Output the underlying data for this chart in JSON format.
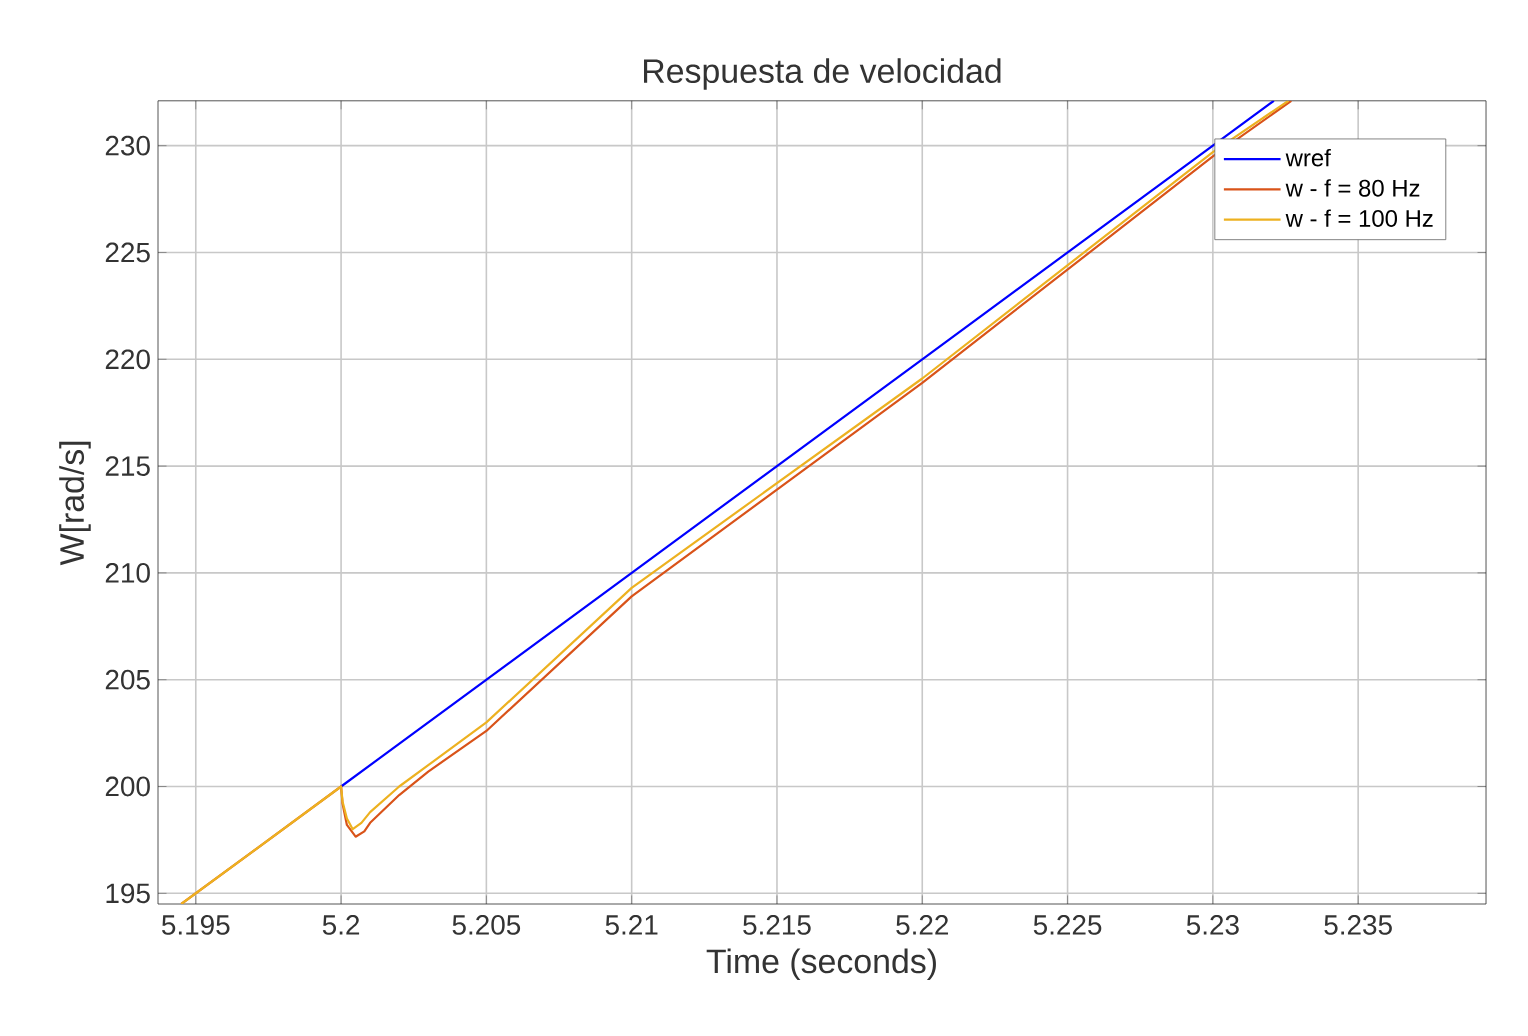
{
  "chart_data": {
    "type": "line",
    "title": "Respuesta de velocidad",
    "xlabel": "Time (seconds)",
    "ylabel": "W[rad/s]",
    "xlim": [
      5.1937,
      5.2394
    ],
    "ylim": [
      194.5,
      232.1
    ],
    "xticks": [
      5.195,
      5.2,
      5.205,
      5.21,
      5.215,
      5.22,
      5.225,
      5.23,
      5.235
    ],
    "yticks": [
      195,
      200,
      205,
      210,
      215,
      220,
      225,
      230
    ],
    "grid": true,
    "legend": "top right",
    "marker": "none",
    "line_style": "solid",
    "series": [
      {
        "name": "wref",
        "color": "#0000ff",
        "x": [
          5.2,
          5.21,
          5.22,
          5.2321
        ],
        "values": [
          200,
          210,
          220,
          232.1
        ]
      },
      {
        "name": "w - f = 80 Hz",
        "color": "#d95319",
        "x": [
          5.1945,
          5.2,
          5.20005,
          5.2002,
          5.2005,
          5.2008,
          5.201,
          5.202,
          5.203,
          5.205,
          5.21,
          5.215,
          5.22,
          5.225,
          5.23,
          5.2327
        ],
        "values": [
          194.5,
          200,
          199.2,
          198.2,
          197.65,
          197.9,
          198.3,
          199.6,
          200.7,
          202.6,
          208.9,
          213.9,
          218.9,
          224.2,
          229.5,
          232.1
        ]
      },
      {
        "name": "w - f = 100 Hz",
        "color": "#edb120",
        "x": [
          5.1945,
          5.2,
          5.20005,
          5.2002,
          5.2004,
          5.2007,
          5.201,
          5.202,
          5.203,
          5.205,
          5.21,
          5.215,
          5.22,
          5.225,
          5.23,
          5.2326
        ],
        "values": [
          194.5,
          200,
          199.3,
          198.5,
          198.0,
          198.3,
          198.8,
          200.0,
          201.0,
          203.0,
          209.3,
          214.2,
          219.1,
          224.4,
          229.7,
          232.1
        ]
      }
    ]
  }
}
